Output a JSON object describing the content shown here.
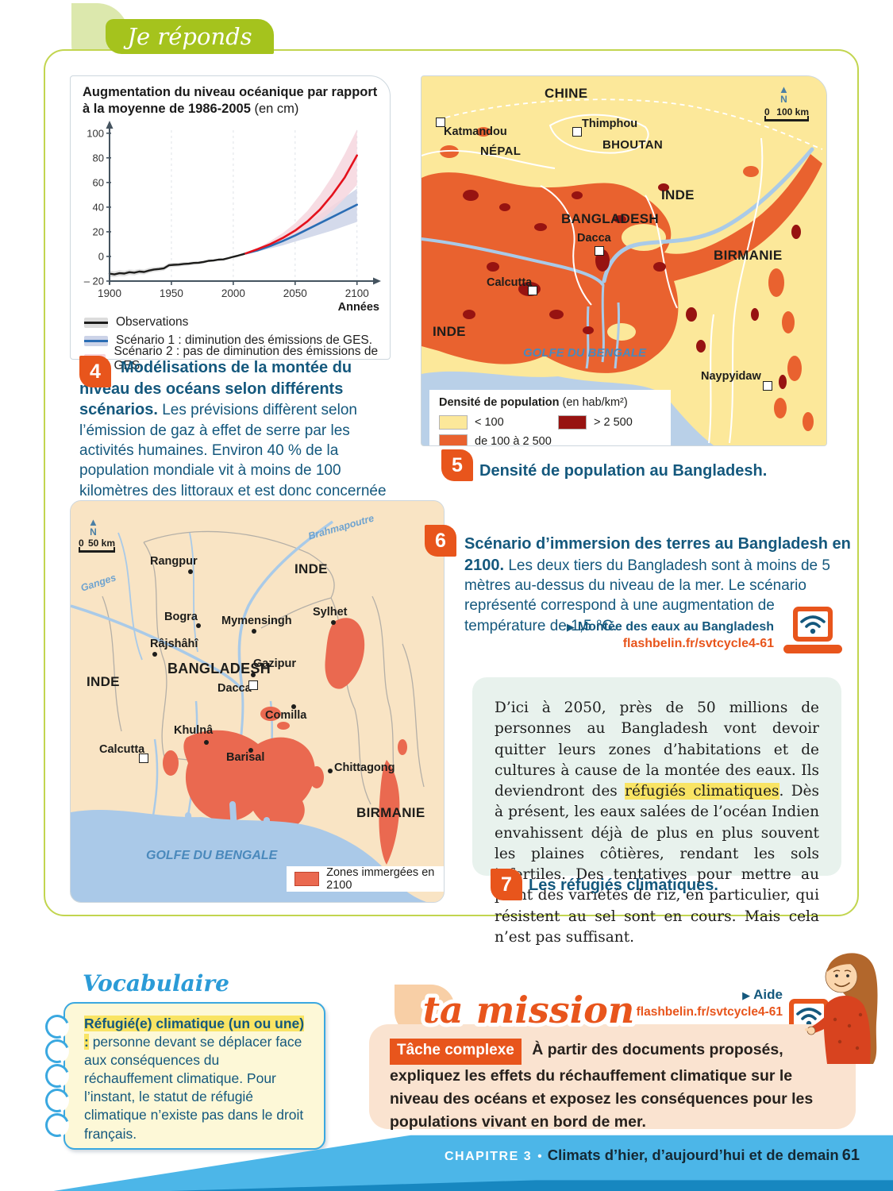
{
  "page": {
    "header_label": "Je réponds",
    "footer": {
      "chapitre_label": "CHAPITRE 3",
      "bullet": "•",
      "chapter_title": "Climats d’hier, d’aujourd’hui et de demain",
      "page_number": "61"
    }
  },
  "colors": {
    "accent_orange": "#e8551c",
    "heading_blue": "#14587d",
    "header_green": "#a5c31d",
    "footer_blue": "#4cb6e8",
    "highlight_yellow": "#f9e464",
    "map_density_low": "#fce89a",
    "map_density_mid": "#e9622f",
    "map_density_high": "#971311",
    "map_sea": "#b9d0e8",
    "map6_land": "#f9e4c4",
    "map6_zone": "#ea6950"
  },
  "chart_data": {
    "type": "line",
    "title": "Augmentation du niveau océanique par rapport à la moyenne de 1986-2005",
    "title_unit": "(en cm)",
    "xlabel": "Années",
    "ylabel": "",
    "xlim": [
      1900,
      2113
    ],
    "ylim": [
      -20,
      105
    ],
    "xticks": [
      1900,
      1950,
      2000,
      2050,
      2100
    ],
    "yticks": [
      -20,
      0,
      20,
      40,
      60,
      80,
      100
    ],
    "grid": "vertical-dashed",
    "legend_position": "below",
    "series": [
      {
        "name": "Observations",
        "color": "#1d1d1b",
        "band_color": "#dcdcdc",
        "x": [
          1900,
          1904,
          1908,
          1912,
          1916,
          1920,
          1924,
          1928,
          1932,
          1936,
          1940,
          1944,
          1948,
          1952,
          1956,
          1960,
          1964,
          1968,
          1972,
          1976,
          1980,
          1984,
          1988,
          1992,
          1996,
          2000,
          2004,
          2008,
          2010
        ],
        "y": [
          -14,
          -14.6,
          -13.6,
          -13.9,
          -12.8,
          -13.2,
          -12.3,
          -12.6,
          -11.4,
          -10.6,
          -10.2,
          -9.6,
          -7.2,
          -6.8,
          -6.6,
          -6.1,
          -5.9,
          -5.3,
          -5.1,
          -4.5,
          -3.6,
          -3.3,
          -2.6,
          -2.4,
          -1.4,
          -0.3,
          0.7,
          1.8,
          2.4
        ],
        "band_low": [
          -16.5,
          -17,
          -16,
          -16.2,
          -15,
          -15.4,
          -14.4,
          -14.6,
          -13.4,
          -12.5,
          -12,
          -11.4,
          -9,
          -8.5,
          -8.2,
          -7.6,
          -7.3,
          -6.6,
          -6.3,
          -5.6,
          -4.6,
          -4.2,
          -3.4,
          -3.1,
          -2,
          -0.9,
          0.1,
          1.3,
          1.9
        ],
        "band_high": [
          -11.5,
          -12.2,
          -11.2,
          -11.6,
          -10.6,
          -11,
          -10.2,
          -10.6,
          -9.4,
          -8.7,
          -8.4,
          -7.8,
          -5.4,
          -5.1,
          -5,
          -4.6,
          -4.5,
          -4,
          -3.9,
          -3.4,
          -2.6,
          -2.4,
          -1.8,
          -1.7,
          -0.8,
          0.3,
          1.3,
          2.3,
          2.9
        ]
      },
      {
        "name": "Scénario 1 : diminution des émissions de GES.",
        "color": "#2a6db4",
        "band_color": "#ccd3e8",
        "x": [
          2010,
          2020,
          2030,
          2040,
          2050,
          2060,
          2070,
          2080,
          2090,
          2100
        ],
        "y": [
          2.4,
          5,
          8.5,
          12.5,
          17,
          22,
          27,
          32,
          37,
          42
        ],
        "band_low": [
          2.4,
          4,
          6.5,
          9,
          12,
          15,
          18,
          21,
          24.5,
          28
        ],
        "band_high": [
          2.4,
          6,
          11,
          16,
          22,
          28,
          34,
          41,
          48,
          55
        ]
      },
      {
        "name": "Scénario 2 : pas de diminution des émissions de GES.",
        "color": "#e4111c",
        "band_color": "#f6d6de",
        "x": [
          2010,
          2020,
          2030,
          2040,
          2050,
          2060,
          2070,
          2080,
          2090,
          2100
        ],
        "y": [
          2.4,
          6,
          10,
          15,
          21,
          28.5,
          38,
          50,
          64,
          82
        ],
        "band_low": [
          2.4,
          5,
          8,
          12,
          16.5,
          22,
          28.5,
          37,
          47,
          58
        ],
        "band_high": [
          2.4,
          7,
          12.5,
          19,
          27,
          37,
          50,
          65,
          83,
          103
        ]
      }
    ]
  },
  "doc4": {
    "number": "4",
    "caption_bold": "Modélisations de la montée du niveau des océans selon différents scénarios.",
    "caption_text": " Les prévisions diffèrent selon l’émission de gaz à effet de serre par les activités humaines. Environ 40 % de la population mondiale vit à moins de 100 kilomètres des littoraux et est donc concernée par la montée des eaux."
  },
  "doc5": {
    "number": "5",
    "caption": "Densité de population au Bangladesh.",
    "map": {
      "north": "N",
      "scale_zero": "0",
      "scale_dist": "100 km",
      "labels": {
        "chine": "CHINE",
        "nepal": "NÉPAL",
        "bhoutan": "BHOUTAN",
        "inde_est": "INDE",
        "bangladesh": "BANGLADESH",
        "birmanie": "BIRMANIE",
        "inde_sud": "INDE",
        "golfe": "GOLFE DU BENGALE",
        "katmandou": "Katmandou",
        "thimphou": "Thimphou",
        "dacca": "Dacca",
        "calcutta": "Calcutta",
        "naypyidaw": "Naypyidaw"
      },
      "legend": {
        "title": "Densité de population",
        "unit": "(en hab/km²)",
        "items": [
          {
            "label": "< 100"
          },
          {
            "label": "> 2 500"
          },
          {
            "label": "de 100 à 2 500"
          }
        ]
      }
    }
  },
  "doc6": {
    "number": "6",
    "caption_bold": "Scénario d’immersion des terres au Bangladesh en 2100.",
    "caption_text": " Les deux tiers du Bangladesh sont à moins de 5 mètres au-dessus du niveau de la mer. Le scénario représenté correspond à une augmentation de température de 1,5 °C.",
    "link_bullet": "▶",
    "link_label": "Montée des eaux au Bangladesh",
    "link_url": "flashbelin.fr/svtcycle4-61",
    "map": {
      "north": "N",
      "scale_zero": "0",
      "scale_dist": "50 km",
      "legend_label": "Zones immergées en 2100",
      "labels": {
        "inde_ne": "INDE",
        "inde_w": "INDE",
        "bangladesh": "BANGLADESH",
        "birmanie": "BIRMANIE",
        "golfe": "GOLFE DU BENGALE",
        "ganges": "Ganges",
        "brahmapoutre": "Brahmapoutre",
        "rangpur": "Rangpur",
        "bogra": "Bogra",
        "mymensingh": "Mymensingh",
        "sylhet": "Sylhet",
        "rajshahi": "Râjshâhî",
        "gazipur": "Gazipur",
        "dacca": "Dacca",
        "comilla": "Comilla",
        "khulna": "Khulnâ",
        "calcutta": "Calcutta",
        "barisal": "Barisal",
        "chittagong": "Chittagong"
      }
    }
  },
  "doc7": {
    "number": "7",
    "text_part1": "D’ici à 2050, près de 50 millions de personnes au Bangladesh vont devoir quitter leurs zones d’habitations et de cultures à cause de la montée des eaux. Ils deviendront des ",
    "text_highlight": "réfugiés climatiques",
    "text_part2": ". Dès à présent, les eaux salées de l’océan Indien envahissent déjà de plus en plus souvent les plaines côtières, rendant les sols infertiles. Des tentatives pour mettre au point des variétés de riz, en particulier, qui résistent au sel sont en cours. Mais cela n’est pas suffisant.",
    "caption": "Les réfugiés climatiques."
  },
  "vocabulaire": {
    "title": "Vocabulaire",
    "term": "Réfugié(e) climatique (un ou une) :",
    "definition": " personne devant se déplacer face aux conséquences du réchauffement climatique. Pour l’instant, le statut de réfugié climatique n’existe pas dans le droit français."
  },
  "mission": {
    "title": "ta mission",
    "aide_bullet": "▶",
    "aide_label": "Aide",
    "aide_url": "flashbelin.fr/svtcycle4-61",
    "badge": "Tâche complexe",
    "text": " À partir des documents proposés, expliquez les effets du réchauffement climatique sur le niveau des océans et exposez les conséquences pour les populations vivant en bord de mer."
  }
}
